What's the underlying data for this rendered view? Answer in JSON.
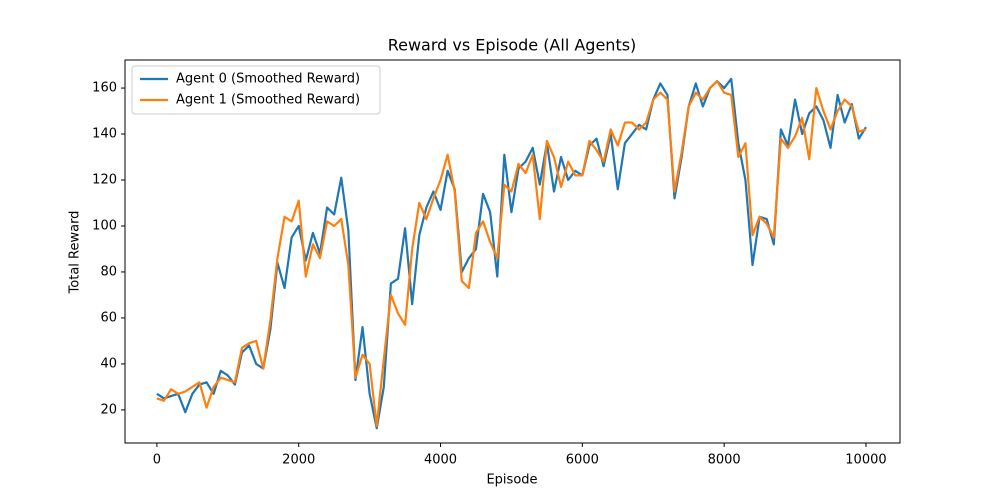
{
  "chart_data": {
    "type": "line",
    "title": "Reward vs Episode (All Agents)",
    "x_label": "Episode",
    "y_label": "Total Reward",
    "x": [
      0,
      100,
      200,
      300,
      400,
      500,
      600,
      700,
      800,
      900,
      1000,
      1100,
      1200,
      1300,
      1400,
      1500,
      1600,
      1700,
      1800,
      1900,
      2000,
      2100,
      2200,
      2300,
      2400,
      2500,
      2600,
      2700,
      2800,
      2900,
      3000,
      3100,
      3200,
      3300,
      3400,
      3500,
      3600,
      3700,
      3800,
      3900,
      4000,
      4100,
      4200,
      4300,
      4400,
      4500,
      4600,
      4700,
      4800,
      4900,
      5000,
      5100,
      5200,
      5300,
      5400,
      5500,
      5600,
      5700,
      5800,
      5900,
      6000,
      6100,
      6200,
      6300,
      6400,
      6500,
      6600,
      6700,
      6800,
      6900,
      7000,
      7100,
      7200,
      7300,
      7400,
      7500,
      7600,
      7700,
      7800,
      7900,
      8000,
      8100,
      8200,
      8300,
      8400,
      8500,
      8600,
      8700,
      8800,
      8900,
      9000,
      9100,
      9200,
      9300,
      9400,
      9500,
      9600,
      9700,
      9800,
      9900,
      10000
    ],
    "series": [
      {
        "name": "Agent 0 (Smoothed Reward)",
        "color": "#1f77b4",
        "values": [
          27,
          25,
          26,
          27,
          19,
          27,
          31,
          32,
          27,
          37,
          35,
          31,
          45,
          48,
          40,
          38,
          55,
          84,
          73,
          95,
          100,
          85,
          97,
          88,
          108,
          105,
          121,
          98,
          33,
          56,
          27,
          12,
          30,
          75,
          77,
          99,
          66,
          96,
          108,
          115,
          107,
          124,
          116,
          80,
          86,
          90,
          114,
          106,
          78,
          131,
          106,
          125,
          128,
          134,
          118,
          136,
          115,
          130,
          120,
          124,
          122,
          135,
          138,
          126,
          140,
          116,
          136,
          140,
          144,
          142,
          155,
          162,
          157,
          112,
          130,
          152,
          162,
          152,
          160,
          163,
          160,
          164,
          136,
          120,
          83,
          104,
          103,
          92,
          142,
          135,
          155,
          140,
          149,
          152,
          146,
          134,
          157,
          145,
          153,
          138,
          143
        ]
      },
      {
        "name": "Agent 1 (Smoothed Reward)",
        "color": "#ff7f0e",
        "values": [
          25,
          24,
          29,
          27,
          28,
          30,
          32,
          21,
          30,
          34,
          33,
          32,
          47,
          49,
          50,
          38,
          59,
          86,
          104,
          102,
          111,
          78,
          92,
          86,
          102,
          100,
          103,
          83,
          34,
          44,
          40,
          13,
          42,
          70,
          62,
          57,
          90,
          110,
          103,
          112,
          120,
          131,
          115,
          76,
          73,
          97,
          102,
          93,
          86,
          118,
          115,
          127,
          123,
          131,
          103,
          137,
          130,
          117,
          128,
          122,
          122,
          137,
          133,
          128,
          142,
          135,
          145,
          145,
          142,
          145,
          155,
          158,
          155,
          115,
          132,
          152,
          158,
          155,
          160,
          163,
          158,
          157,
          130,
          136,
          96,
          104,
          101,
          95,
          138,
          134,
          139,
          147,
          129,
          160,
          150,
          142,
          150,
          155,
          152,
          141,
          142
        ]
      }
    ],
    "xlim": [
      -450,
      10480
    ],
    "ylim": [
      5.6,
      172.2
    ],
    "xticks": [
      0,
      2000,
      4000,
      6000,
      8000,
      10000
    ],
    "yticks": [
      20,
      40,
      60,
      80,
      100,
      120,
      140,
      160
    ],
    "legend": "upper left"
  }
}
